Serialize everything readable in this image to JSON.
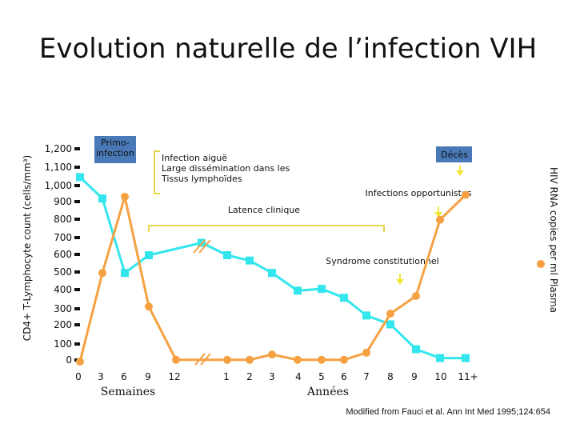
{
  "chart_data": {
    "type": "line",
    "title": "Evolution naturelle de l’infection VIH",
    "ylabel_left": "CD4+ T-Lymphocyte count (cells/mm³)",
    "ylabel_right": "HIV RNA copies per ml Plasma",
    "left_ticks": [
      "1,200",
      "1,100",
      "1,000",
      "900",
      "800",
      "700",
      "600",
      "500",
      "400",
      "300",
      "200",
      "100",
      "0"
    ],
    "left_tick_values": [
      1200,
      1100,
      1000,
      900,
      800,
      700,
      600,
      500,
      400,
      300,
      200,
      100,
      0
    ],
    "weeks_label": "Semaines",
    "years_label": "Années",
    "week_ticks": [
      "0",
      "3",
      "6",
      "9",
      "12"
    ],
    "year_ticks": [
      "1",
      "2",
      "3",
      "4",
      "5",
      "6",
      "7",
      "8",
      "9",
      "10",
      "11+"
    ],
    "x_categories": [
      "0",
      "3",
      "6",
      "9",
      "12",
      "1",
      "2",
      "3",
      "4",
      "5",
      "6",
      "7",
      "8",
      "9",
      "10",
      "11+"
    ],
    "series": [
      {
        "name": "CD4+ T-Lymphocyte count",
        "color": "#33e6ee",
        "x_index": [
          0,
          1,
          2,
          3,
          4.5,
          5,
          6,
          7,
          8,
          9,
          10,
          11,
          12,
          13,
          14,
          15
        ],
        "values": [
          1040,
          920,
          500,
          600,
          670,
          600,
          570,
          500,
          400,
          410,
          360,
          260,
          210,
          70,
          20,
          20
        ]
      },
      {
        "name": "HIV RNA copies per ml Plasma",
        "color": "#f5a142",
        "x_index": [
          0,
          1,
          2,
          3,
          4,
          5,
          6,
          7,
          8,
          9,
          10,
          11,
          12,
          13,
          14,
          15
        ],
        "values": [
          0,
          500,
          930,
          310,
          10,
          10,
          10,
          40,
          10,
          10,
          10,
          50,
          270,
          370,
          800,
          940
        ]
      }
    ],
    "annotations": {
      "primo": [
        "Primo-",
        "infection"
      ],
      "acute": [
        "Infection aiguë",
        "Large dissémination dans les",
        "Tissus lymphoïdes"
      ],
      "latency": "Latence clinique",
      "deces": "Décès",
      "opportunistic": "Infections opportunistes",
      "constitutional": "Syndrome constitutionnel"
    },
    "source": "Modified from Fauci et al. Ann Int Med 1995;124:654"
  },
  "colors": {
    "cd4": "#33e6ee",
    "rna": "#f5a142",
    "label_box": "#4a79b8",
    "bracket": "#e6d64a",
    "arrow": "#f2e43a"
  }
}
